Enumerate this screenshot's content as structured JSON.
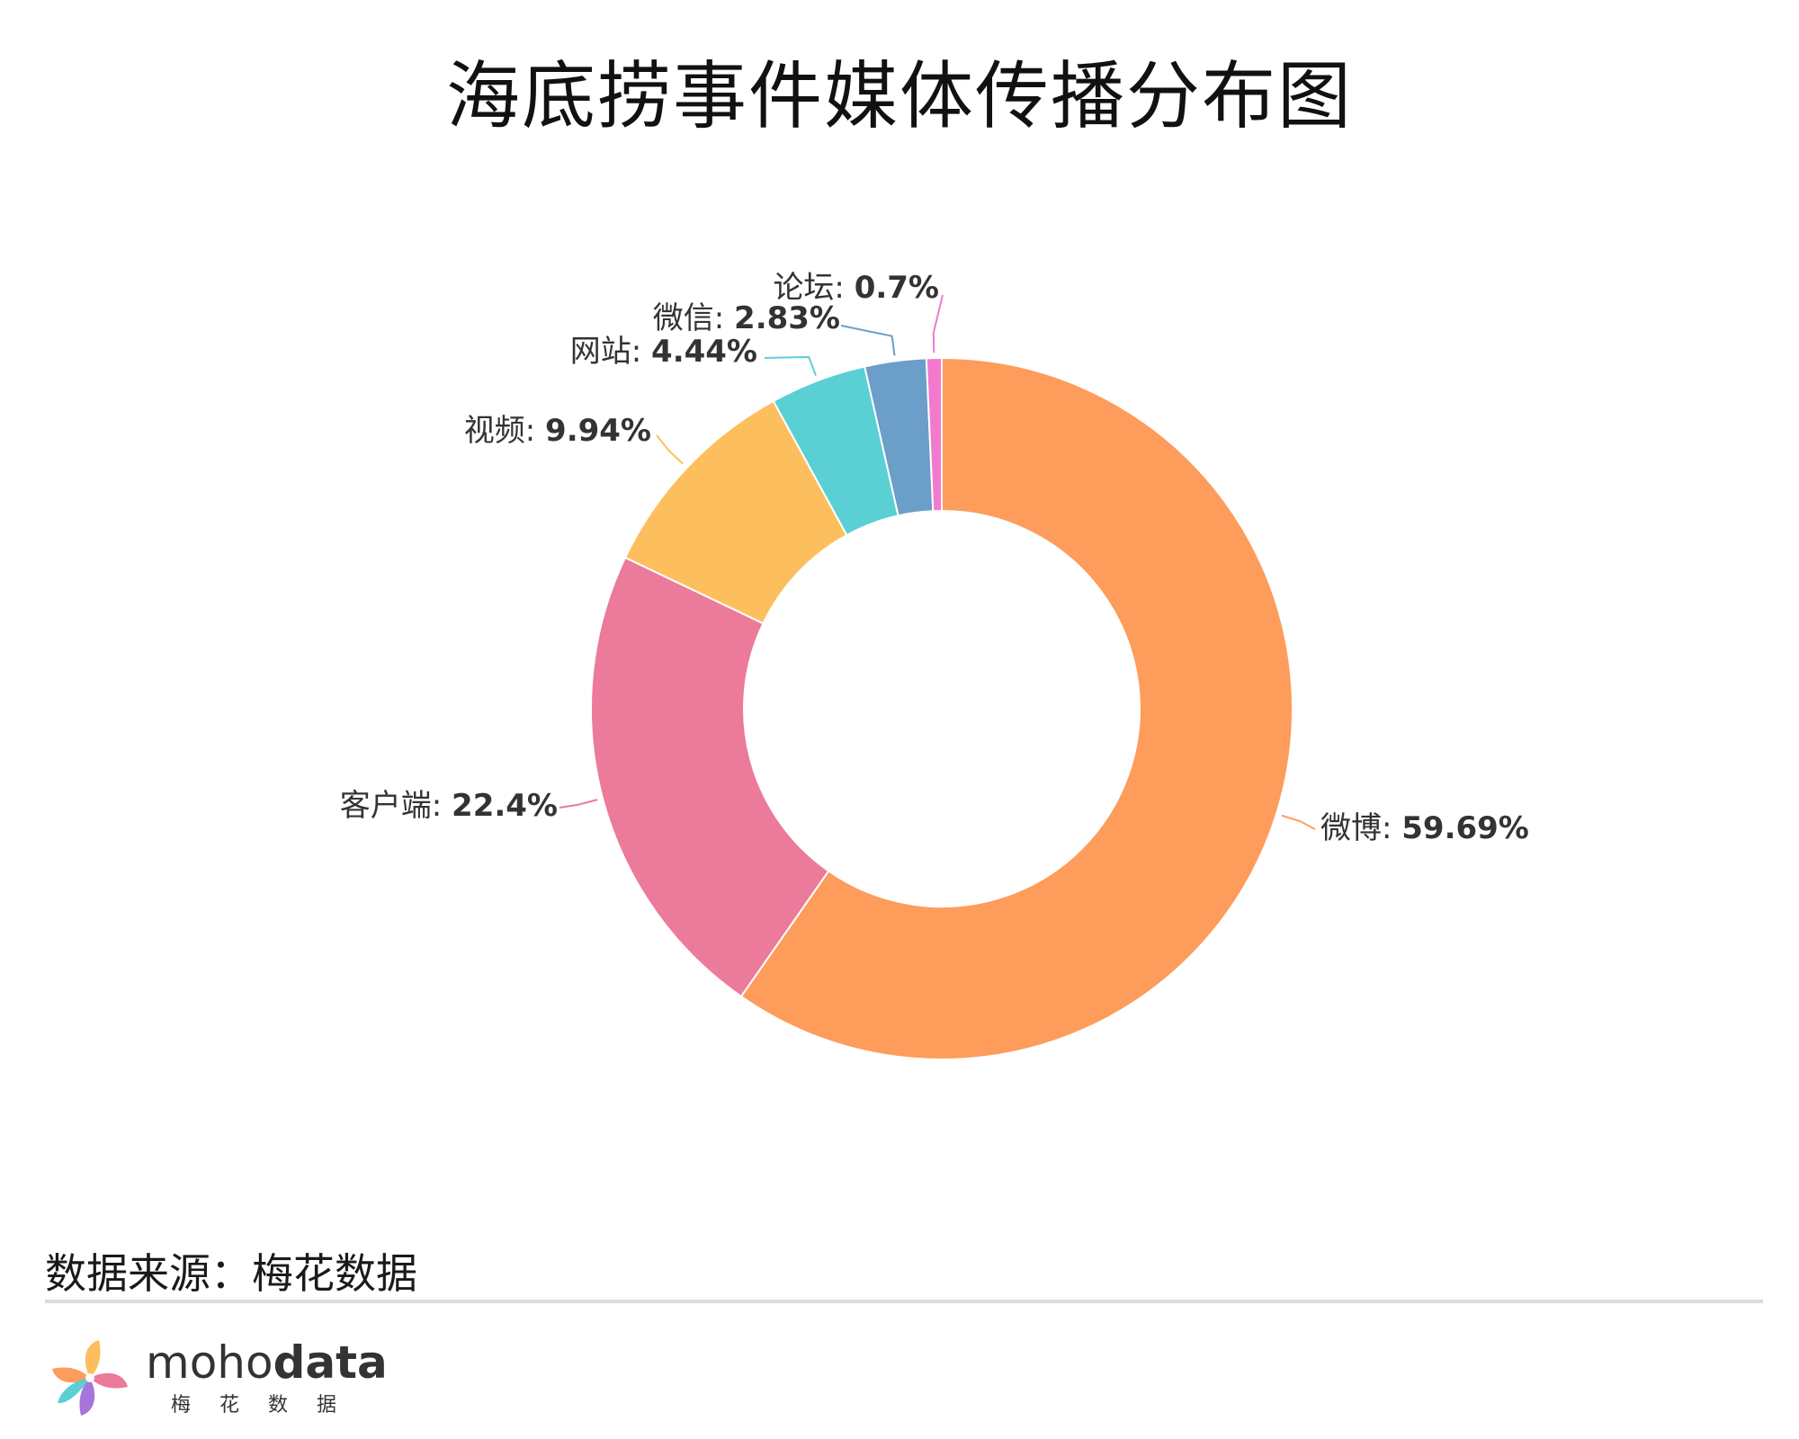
{
  "chart_data": {
    "type": "pie",
    "title": "海底捞事件媒体传播分布图",
    "donut": true,
    "slices": [
      {
        "name": "微博",
        "value": 59.69,
        "label": "59.69%",
        "color": "#FE9C5C"
      },
      {
        "name": "客户端",
        "value": 22.4,
        "label": "22.4%",
        "color": "#EC7A9A"
      },
      {
        "name": "视频",
        "value": 9.94,
        "label": "9.94%",
        "color": "#FDBF5E"
      },
      {
        "name": "网站",
        "value": 4.44,
        "label": "4.44%",
        "color": "#5ACFD4"
      },
      {
        "name": "微信",
        "value": 2.83,
        "label": "2.83%",
        "color": "#6B9EC8"
      },
      {
        "name": "论坛",
        "value": 0.7,
        "label": "0.7%",
        "color": "#F27ACD"
      }
    ]
  },
  "footer": {
    "source": "数据来源：梅花数据",
    "brand_light": "moho",
    "brand_bold": "data",
    "brand_sub": "梅花数据"
  }
}
